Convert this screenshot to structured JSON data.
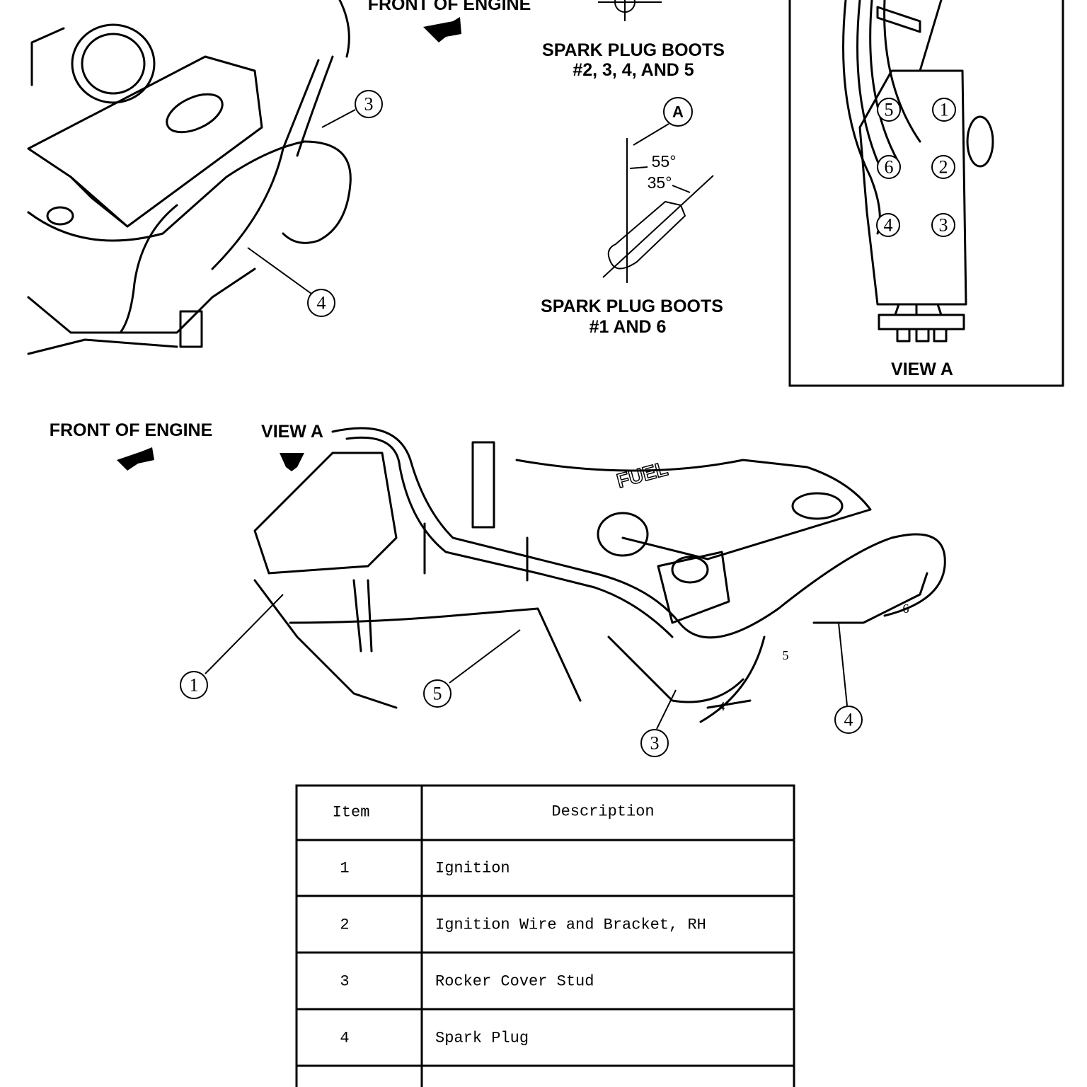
{
  "top_figure": {
    "front_label": "FRONT OF ENGINE",
    "boots_upper": [
      "SPARK PLUG BOOTS",
      "#2, 3, 4, AND 5"
    ],
    "detail_marker": "A",
    "angles": [
      "55°",
      "35°"
    ],
    "boots_lower": [
      "SPARK PLUG BOOTS",
      "#1 AND 6"
    ],
    "callouts": [
      3,
      4
    ]
  },
  "view_a": {
    "coils": [
      5,
      1,
      6,
      2,
      4,
      3
    ],
    "caption": "VIEW A"
  },
  "bottom_figure": {
    "front_label": "FRONT OF ENGINE",
    "view_label": "VIEW A",
    "cover_text": "FUEL",
    "callouts": [
      1,
      5,
      3,
      4
    ],
    "wire_numbers": [
      6,
      5,
      4
    ]
  },
  "table": {
    "header": [
      "Item",
      "Description"
    ],
    "rows": [
      [
        1,
        "Ignition"
      ],
      [
        2,
        "Ignition Wire and Bracket, RH"
      ],
      [
        3,
        "Rocker Cover Stud"
      ],
      [
        4,
        "Spark Plug"
      ]
    ]
  }
}
